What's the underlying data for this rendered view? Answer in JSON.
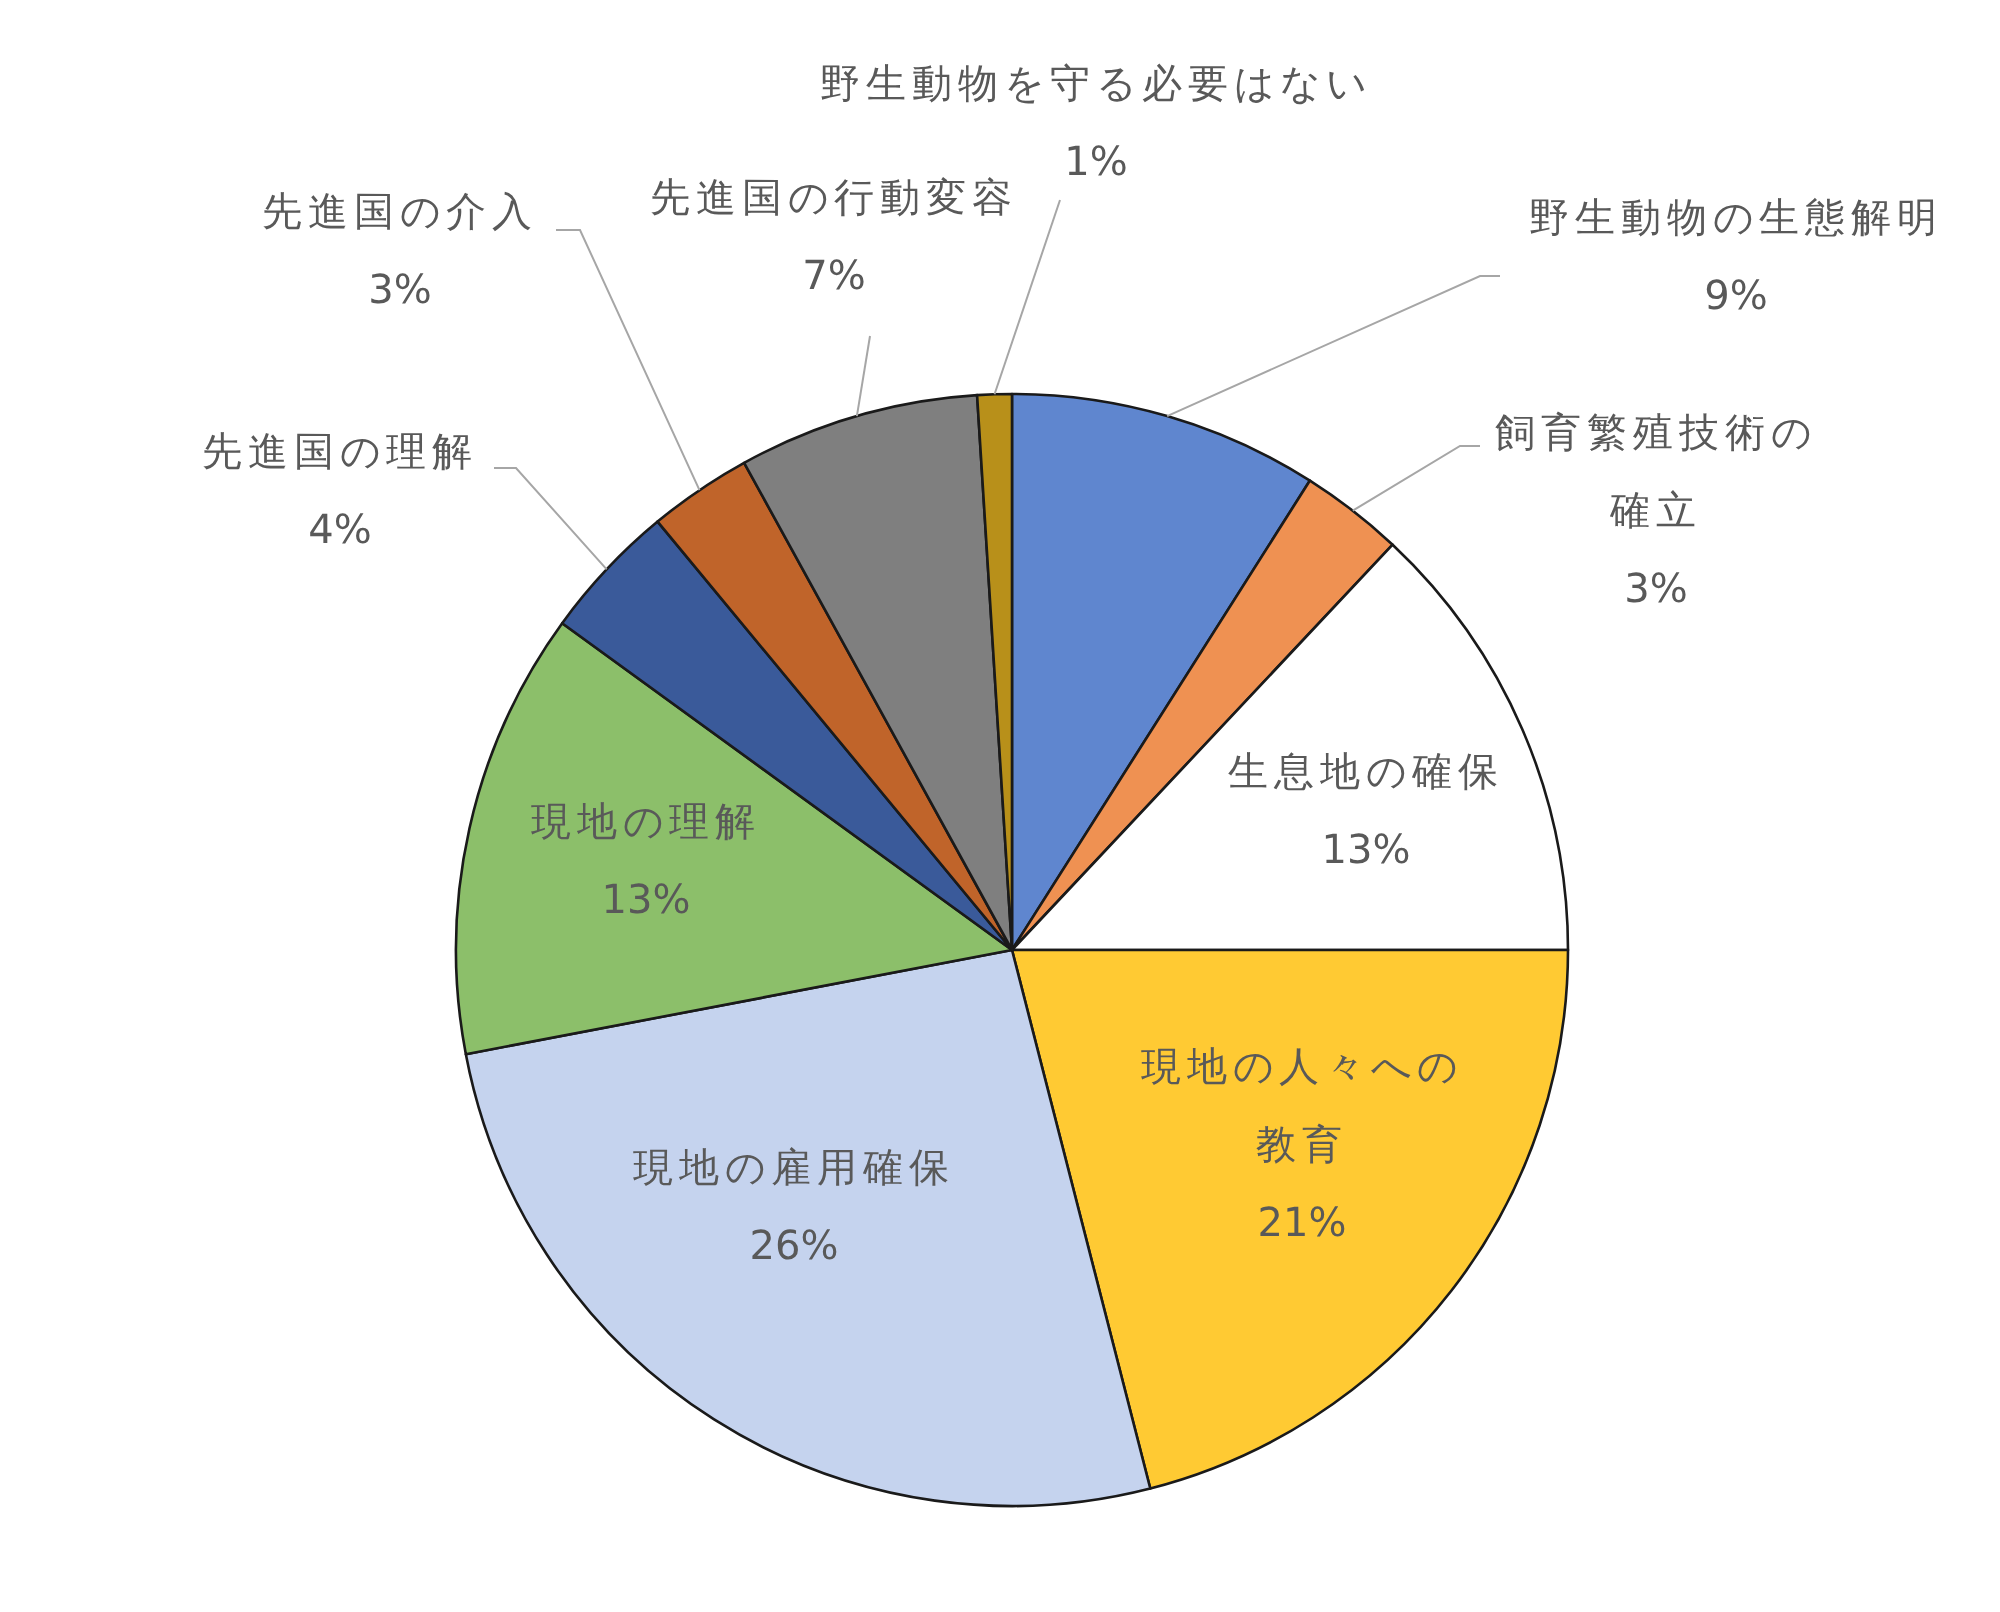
{
  "chart_data": {
    "type": "pie",
    "categories": [
      "野生動物の生態解明",
      "飼育繁殖技術の確立",
      "生息地の確保",
      "現地の人々への教育",
      "現地の雇用確保",
      "現地の理解",
      "先進国の理解",
      "先進国の介入",
      "先進国の行動変容",
      "野生動物を守る必要はない"
    ],
    "values": [
      9,
      3,
      13,
      21,
      26,
      13,
      4,
      3,
      7,
      1
    ],
    "colors": [
      "#5f86cf",
      "#ef9152",
      "#ffffff",
      "#ffca33",
      "#c5d3ee",
      "#8cbf6a",
      "#3a5a9a",
      "#c0642a",
      "#7f7f7f",
      "#b8901a"
    ],
    "value_labels": [
      "9%",
      "3%",
      "13%",
      "21%",
      "26%",
      "13%",
      "4%",
      "3%",
      "7%",
      "1%"
    ]
  }
}
